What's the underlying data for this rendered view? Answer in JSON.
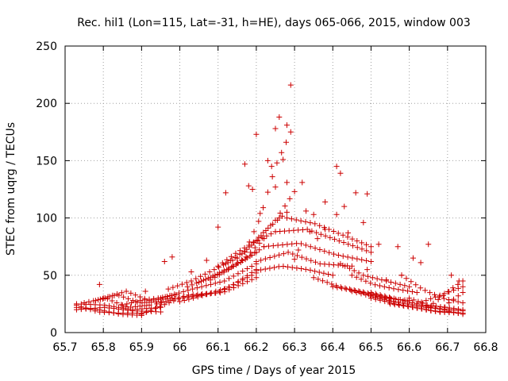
{
  "chart_data": {
    "type": "scatter",
    "title": "Rec. hil1 (Lon=115, Lat=-31, h=HE), days 065-066, 2015, window 003",
    "xlabel": "GPS time / Days of year 2015",
    "ylabel": "STEC from uqrg / TECUs",
    "xlim": [
      65.7,
      66.8
    ],
    "ylim": [
      0,
      250
    ],
    "xticks": [
      "65.7",
      "65.8",
      "65.9",
      "66",
      "66.1",
      "66.2",
      "66.3",
      "66.4",
      "66.5",
      "66.6",
      "66.7",
      "66.8"
    ],
    "yticks": [
      "0",
      "50",
      "100",
      "150",
      "200",
      "250"
    ],
    "grid": true,
    "marker": "+",
    "color": "#cc0000",
    "tracks": [
      {
        "x0": 65.73,
        "x1": 65.9,
        "a": [
          24,
          18,
          17,
          17
        ]
      },
      {
        "x0": 65.73,
        "x1": 65.9,
        "a": [
          22,
          20,
          16,
          15
        ]
      },
      {
        "x0": 65.73,
        "x1": 65.95,
        "a": [
          20,
          22,
          19,
          18
        ]
      },
      {
        "x0": 65.73,
        "x1": 65.95,
        "a": [
          25,
          24,
          20,
          22
        ]
      },
      {
        "x0": 65.75,
        "x1": 65.92,
        "a": [
          26,
          30,
          22,
          24
        ]
      },
      {
        "x0": 65.78,
        "x1": 65.95,
        "a": [
          28,
          33,
          26,
          27
        ]
      },
      {
        "x0": 65.8,
        "x1": 65.98,
        "a": [
          30,
          36,
          28,
          30
        ]
      },
      {
        "x0": 65.85,
        "x1": 65.99,
        "a": [
          24,
          28,
          30,
          33
        ]
      },
      {
        "x0": 65.9,
        "x1": 66.2,
        "a": [
          16,
          30,
          35,
          52
        ]
      },
      {
        "x0": 65.94,
        "x1": 66.2,
        "a": [
          25,
          33,
          35,
          48
        ]
      },
      {
        "x0": 65.95,
        "x1": 66.2,
        "a": [
          30,
          38,
          45,
          60
        ]
      },
      {
        "x0": 65.97,
        "x1": 66.15,
        "a": [
          38,
          45,
          55,
          65
        ]
      },
      {
        "x0": 66.0,
        "x1": 66.2,
        "a": [
          27,
          33,
          40,
          55
        ]
      },
      {
        "x0": 66.02,
        "x1": 66.2,
        "a": [
          40,
          48,
          58,
          70
        ]
      },
      {
        "x0": 66.05,
        "x1": 66.22,
        "a": [
          44,
          52,
          62,
          75
        ]
      },
      {
        "x0": 66.08,
        "x1": 66.22,
        "a": [
          46,
          55,
          66,
          82
        ]
      },
      {
        "x0": 66.1,
        "x1": 66.25,
        "a": [
          58,
          70,
          80,
          88
        ]
      },
      {
        "x0": 66.12,
        "x1": 66.28,
        "a": [
          60,
          72,
          90,
          105
        ]
      },
      {
        "x0": 66.15,
        "x1": 66.3,
        "a": [
          65,
          80,
          98,
          123
        ]
      },
      {
        "x0": 66.17,
        "x1": 66.29,
        "a": [
          70,
          100,
          145,
          175
        ]
      },
      {
        "x0": 66.2,
        "x1": 66.4,
        "a": [
          54,
          58,
          55,
          50
        ]
      },
      {
        "x0": 66.2,
        "x1": 66.45,
        "a": [
          62,
          70,
          60,
          58
        ]
      },
      {
        "x0": 66.22,
        "x1": 66.5,
        "a": [
          75,
          78,
          68,
          62
        ]
      },
      {
        "x0": 66.25,
        "x1": 66.5,
        "a": [
          88,
          90,
          80,
          70
        ]
      },
      {
        "x0": 66.28,
        "x1": 66.5,
        "a": [
          100,
          95,
          85,
          75
        ]
      },
      {
        "x0": 66.35,
        "x1": 66.55,
        "a": [
          48,
          40,
          35,
          30
        ]
      },
      {
        "x0": 66.4,
        "x1": 66.6,
        "a": [
          40,
          36,
          30,
          28
        ]
      },
      {
        "x0": 66.42,
        "x1": 66.6,
        "a": [
          60,
          50,
          45,
          40
        ]
      },
      {
        "x0": 66.45,
        "x1": 66.62,
        "a": [
          50,
          42,
          38,
          35
        ]
      },
      {
        "x0": 66.45,
        "x1": 66.74,
        "a": [
          36,
          28,
          22,
          19
        ]
      },
      {
        "x0": 66.5,
        "x1": 66.74,
        "a": [
          30,
          24,
          19,
          17
        ]
      },
      {
        "x0": 66.5,
        "x1": 66.74,
        "a": [
          35,
          28,
          22,
          16
        ]
      },
      {
        "x0": 66.55,
        "x1": 66.74,
        "a": [
          25,
          22,
          18,
          17
        ]
      },
      {
        "x0": 66.58,
        "x1": 66.74,
        "a": [
          50,
          38,
          30,
          26
        ]
      },
      {
        "x0": 66.6,
        "x1": 66.74,
        "a": [
          30,
          24,
          22,
          20
        ]
      },
      {
        "x0": 66.62,
        "x1": 66.74,
        "a": [
          25,
          30,
          35,
          40
        ]
      },
      {
        "x0": 66.65,
        "x1": 66.74,
        "a": [
          22,
          30,
          38,
          45
        ]
      },
      {
        "x0": 66.68,
        "x1": 66.74,
        "a": [
          18,
          25,
          30,
          35
        ]
      }
    ],
    "points": [
      [
        66.29,
        216
      ],
      [
        66.26,
        188
      ],
      [
        66.28,
        181
      ],
      [
        66.25,
        178
      ],
      [
        66.2,
        173
      ],
      [
        66.27,
        151
      ],
      [
        66.23,
        150
      ],
      [
        66.17,
        147
      ],
      [
        66.24,
        145
      ],
      [
        66.41,
        145
      ],
      [
        66.42,
        139
      ],
      [
        66.32,
        131
      ],
      [
        66.28,
        131
      ],
      [
        66.25,
        127
      ],
      [
        66.18,
        128
      ],
      [
        66.12,
        122
      ],
      [
        66.46,
        122
      ],
      [
        66.49,
        121
      ],
      [
        66.38,
        114
      ],
      [
        66.43,
        110
      ],
      [
        66.21,
        104
      ],
      [
        66.33,
        106
      ],
      [
        66.35,
        103
      ],
      [
        66.41,
        103
      ],
      [
        66.26,
        100
      ],
      [
        66.48,
        96
      ],
      [
        66.1,
        92
      ],
      [
        66.44,
        87
      ],
      [
        66.52,
        77
      ],
      [
        66.57,
        75
      ],
      [
        66.65,
        77
      ],
      [
        66.61,
        65
      ],
      [
        66.63,
        61
      ],
      [
        65.98,
        66
      ],
      [
        65.96,
        62
      ],
      [
        66.07,
        63
      ],
      [
        66.03,
        53
      ],
      [
        65.79,
        42
      ],
      [
        65.91,
        36
      ],
      [
        66.71,
        50
      ],
      [
        66.73,
        45
      ],
      [
        66.49,
        55
      ],
      [
        66.54,
        46
      ],
      [
        66.58,
        50
      ],
      [
        66.38,
        90
      ],
      [
        66.36,
        82
      ],
      [
        66.34,
        88
      ],
      [
        66.31,
        72
      ],
      [
        66.3,
        64
      ],
      [
        66.19,
        125
      ]
    ]
  }
}
